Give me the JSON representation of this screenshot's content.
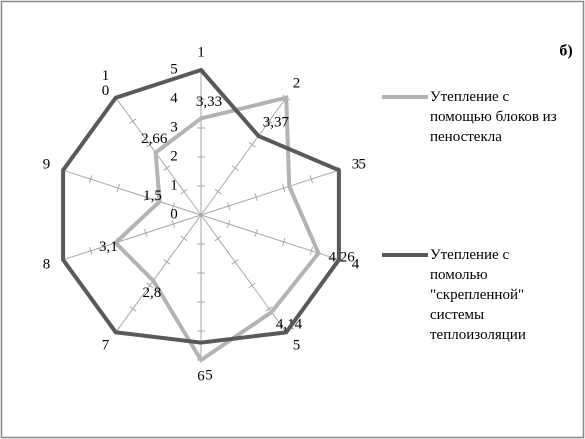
{
  "chart_data": {
    "type": "radar",
    "corner_label": "б)",
    "categories": [
      "1",
      "2",
      "3",
      "4",
      "5",
      "6",
      "7",
      "8",
      "9",
      "10"
    ],
    "rlim": [
      0,
      5
    ],
    "rticks": [
      0,
      1,
      2,
      3,
      4,
      5
    ],
    "legend": "right",
    "series": [
      {
        "name": "Утепление с помощью блоков из пеностекла",
        "color": "#b3b3b3",
        "values": [
          3.33,
          5,
          3.2,
          4.26,
          4.14,
          5,
          2.8,
          3.1,
          1.5,
          2.66
        ],
        "value_labels": [
          "3,33",
          null,
          null,
          "4,26",
          "4,14",
          "5",
          "2,8",
          "3,1",
          "1,5",
          "2,66"
        ]
      },
      {
        "name": "Утепление с помолью \"скрепленной\" системы теплоизоляции",
        "color": "#595959",
        "values": [
          5,
          3.37,
          5,
          5,
          5,
          4.4,
          5,
          5,
          5,
          5
        ],
        "value_labels": [
          null,
          "3,37",
          "5",
          null,
          null,
          null,
          null,
          null,
          null,
          null
        ]
      }
    ]
  }
}
